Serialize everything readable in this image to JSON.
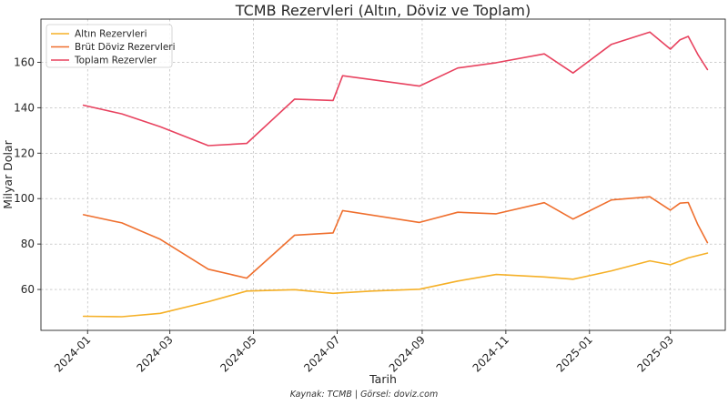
{
  "chart_data": {
    "type": "line",
    "title": "TCMB Rezervleri (Altın, Döviz ve Toplam)",
    "xlabel": "Tarih",
    "ylabel": "Milyar Dolar",
    "source": "Kaynak: TCMB | Görsel: doviz.com",
    "xlim": [
      "2023-11-28",
      "2025-04-10"
    ],
    "ylim": [
      42,
      179
    ],
    "yticks": [
      60,
      80,
      100,
      120,
      140,
      160
    ],
    "xticks": [
      "2024-01",
      "2024-03",
      "2024-05",
      "2024-07",
      "2024-09",
      "2024-11",
      "2025-01",
      "2025-03"
    ],
    "grid": true,
    "legend_position": "upper-left",
    "series": [
      {
        "name": "Altın Rezervleri",
        "color": "#f5b027",
        "points": [
          [
            "2023-12-29",
            48.2
          ],
          [
            "2024-01-26",
            48.0
          ],
          [
            "2024-02-23",
            49.5
          ],
          [
            "2024-03-29",
            54.6
          ],
          [
            "2024-04-26",
            59.3
          ],
          [
            "2024-05-31",
            59.9
          ],
          [
            "2024-06-28",
            58.3
          ],
          [
            "2024-07-26",
            59.3
          ],
          [
            "2024-08-30",
            60.1
          ],
          [
            "2024-09-27",
            63.7
          ],
          [
            "2024-10-25",
            66.6
          ],
          [
            "2024-11-29",
            65.5
          ],
          [
            "2024-12-20",
            64.5
          ],
          [
            "2025-01-17",
            68.2
          ],
          [
            "2025-02-14",
            72.6
          ],
          [
            "2025-03-01",
            70.9
          ],
          [
            "2025-03-14",
            73.9
          ],
          [
            "2025-03-28",
            76.0
          ]
        ]
      },
      {
        "name": "Brüt Döviz Rezervleri",
        "color": "#ef6f2e",
        "points": [
          [
            "2023-12-29",
            92.9
          ],
          [
            "2024-01-26",
            89.3
          ],
          [
            "2024-02-23",
            82.1
          ],
          [
            "2024-03-29",
            68.9
          ],
          [
            "2024-04-26",
            65.0
          ],
          [
            "2024-05-31",
            83.9
          ],
          [
            "2024-06-28",
            84.9
          ],
          [
            "2024-07-05",
            94.7
          ],
          [
            "2024-08-30",
            89.5
          ],
          [
            "2024-09-27",
            94.0
          ],
          [
            "2024-10-25",
            93.3
          ],
          [
            "2024-11-29",
            98.2
          ],
          [
            "2024-12-20",
            91.0
          ],
          [
            "2025-01-17",
            99.4
          ],
          [
            "2025-02-14",
            100.8
          ],
          [
            "2025-03-01",
            94.9
          ],
          [
            "2025-03-08",
            98.0
          ],
          [
            "2025-03-14",
            98.3
          ],
          [
            "2025-03-21",
            88.5
          ],
          [
            "2025-03-28",
            80.6
          ]
        ]
      },
      {
        "name": "Toplam Rezervler",
        "color": "#e8425f",
        "points": [
          [
            "2023-12-29",
            141.1
          ],
          [
            "2024-01-26",
            137.3
          ],
          [
            "2024-02-23",
            131.6
          ],
          [
            "2024-03-29",
            123.3
          ],
          [
            "2024-04-26",
            124.3
          ],
          [
            "2024-05-31",
            143.8
          ],
          [
            "2024-06-28",
            143.2
          ],
          [
            "2024-07-05",
            154.1
          ],
          [
            "2024-08-30",
            149.5
          ],
          [
            "2024-09-27",
            157.5
          ],
          [
            "2024-10-25",
            159.8
          ],
          [
            "2024-11-29",
            163.7
          ],
          [
            "2024-12-20",
            155.3
          ],
          [
            "2025-01-17",
            167.9
          ],
          [
            "2025-02-14",
            173.3
          ],
          [
            "2025-03-01",
            165.8
          ],
          [
            "2025-03-08",
            169.9
          ],
          [
            "2025-03-14",
            171.4
          ],
          [
            "2025-03-21",
            163.4
          ],
          [
            "2025-03-28",
            156.8
          ]
        ]
      }
    ]
  }
}
